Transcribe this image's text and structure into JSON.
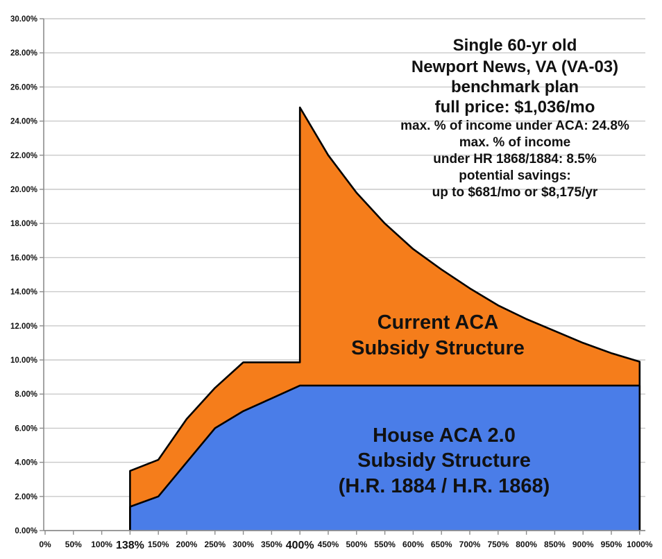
{
  "chart_data": {
    "type": "area",
    "title": "",
    "xlabel": "",
    "ylabel": "",
    "ylim": [
      0,
      30
    ],
    "ytick_step": 2,
    "y_tick_labels": [
      "0.00%",
      "2.00%",
      "4.00%",
      "6.00%",
      "8.00%",
      "10.00%",
      "12.00%",
      "14.00%",
      "16.00%",
      "18.00%",
      "20.00%",
      "22.00%",
      "24.00%",
      "26.00%",
      "28.00%",
      "30.00%"
    ],
    "categories": [
      "0%",
      "50%",
      "100%",
      "138%",
      "150%",
      "200%",
      "250%",
      "300%",
      "350%",
      "400%",
      "450%",
      "500%",
      "550%",
      "600%",
      "650%",
      "700%",
      "750%",
      "800%",
      "850%",
      "900%",
      "950%",
      "1000%"
    ],
    "emphasized_x_labels": [
      "138%",
      "400%"
    ],
    "grid": "horizontal",
    "legend_position": "none (labels drawn inside areas)",
    "gridline_color": "#C9C9C9",
    "axis_color": "#8C8C8C",
    "outline_color": "#000000",
    "series": [
      {
        "name": "Current ACA Subsidy Structure",
        "color": "#F57D1B",
        "unit": "% of income",
        "points": [
          [
            "138%",
            3.5
          ],
          [
            "150%",
            4.15
          ],
          [
            "200%",
            6.54
          ],
          [
            "250%",
            8.36
          ],
          [
            "300%",
            9.86
          ],
          [
            "350%",
            9.86
          ],
          [
            "400%",
            9.86
          ],
          [
            "400%",
            24.8
          ],
          [
            "450%",
            22.0
          ],
          [
            "500%",
            19.8
          ],
          [
            "550%",
            18.0
          ],
          [
            "600%",
            16.5
          ],
          [
            "650%",
            15.3
          ],
          [
            "700%",
            14.2
          ],
          [
            "750%",
            13.2
          ],
          [
            "800%",
            12.4
          ],
          [
            "850%",
            11.7
          ],
          [
            "900%",
            11.0
          ],
          [
            "950%",
            10.4
          ],
          [
            "1000%",
            9.9
          ]
        ]
      },
      {
        "name": "House ACA 2.0 Subsidy Structure (H.R. 1884 / H.R. 1868)",
        "color": "#4A7DE8",
        "unit": "% of income",
        "points": [
          [
            "138%",
            1.4
          ],
          [
            "150%",
            2.0
          ],
          [
            "200%",
            4.0
          ],
          [
            "250%",
            6.0
          ],
          [
            "300%",
            7.0
          ],
          [
            "350%",
            7.75
          ],
          [
            "400%",
            8.5
          ],
          [
            "450%",
            8.5
          ],
          [
            "500%",
            8.5
          ],
          [
            "550%",
            8.5
          ],
          [
            "600%",
            8.5
          ],
          [
            "650%",
            8.5
          ],
          [
            "700%",
            8.5
          ],
          [
            "750%",
            8.5
          ],
          [
            "800%",
            8.5
          ],
          [
            "850%",
            8.5
          ],
          [
            "900%",
            8.5
          ],
          [
            "950%",
            8.5
          ],
          [
            "1000%",
            8.5
          ]
        ]
      }
    ]
  },
  "annotation": {
    "lines": [
      "Single 60-yr old",
      "Newport News, VA (VA-03)",
      "benchmark plan",
      "full price: $1,036/mo",
      "max. % of income under ACA: 24.8%",
      "max. % of income",
      "under HR 1868/1884: 8.5%",
      "potential savings:",
      "up to $681/mo or $8,175/yr"
    ]
  },
  "series_labels": {
    "aca": [
      "Current ACA",
      "Subsidy Structure"
    ],
    "house": [
      "House ACA 2.0",
      "Subsidy Structure",
      "(H.R. 1884 / H.R. 1868)"
    ]
  }
}
